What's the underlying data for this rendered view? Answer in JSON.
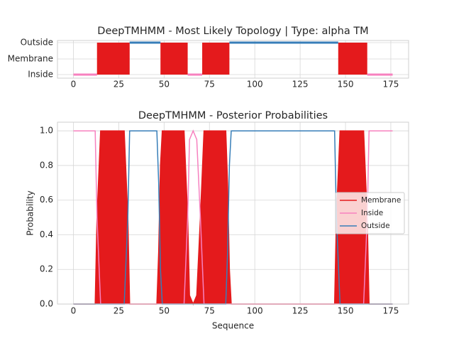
{
  "chart_data": [
    {
      "type": "topology",
      "title": "DeepTMHMM - Most Likely Topology | Type: alpha TM",
      "categories": [
        "Inside",
        "Membrane",
        "Outside"
      ],
      "segments": [
        {
          "state": "Inside",
          "start": 0,
          "end": 13
        },
        {
          "state": "Membrane",
          "start": 13,
          "end": 31
        },
        {
          "state": "Outside",
          "start": 31,
          "end": 48
        },
        {
          "state": "Membrane",
          "start": 48,
          "end": 63
        },
        {
          "state": "Inside",
          "start": 63,
          "end": 71
        },
        {
          "state": "Membrane",
          "start": 71,
          "end": 86
        },
        {
          "state": "Outside",
          "start": 86,
          "end": 146
        },
        {
          "state": "Membrane",
          "start": 146,
          "end": 162
        },
        {
          "state": "Inside",
          "start": 162,
          "end": 176
        }
      ],
      "colors": {
        "Inside": "#f781bf",
        "Membrane": "#e41a1c",
        "Outside": "#377eb8"
      },
      "xlim": [
        -8.8,
        184.8
      ],
      "xticks": [
        0,
        25,
        50,
        75,
        100,
        125,
        150,
        175
      ],
      "grid": true
    },
    {
      "type": "line",
      "title": "DeepTMHMM - Posterior Probabilities",
      "x_label": "Sequence",
      "y_label": "Probability",
      "x": [
        0,
        12,
        13,
        15,
        28,
        30,
        31,
        32,
        46,
        47,
        48,
        49,
        61,
        63,
        64,
        66,
        68,
        70,
        72,
        84,
        85,
        86,
        87,
        144,
        145,
        147,
        160,
        162,
        163,
        176
      ],
      "series": [
        {
          "name": "Membrane",
          "color": "#e41a1c",
          "fill": true,
          "values": [
            0,
            0,
            0.5,
            1,
            1,
            0.5,
            0,
            0,
            0,
            0.3,
            0.8,
            1,
            1,
            0.5,
            0.05,
            0,
            0.05,
            0.5,
            1,
            1,
            0.7,
            0.2,
            0,
            0,
            0.5,
            1,
            1,
            0.5,
            0,
            0
          ]
        },
        {
          "name": "Inside",
          "color": "#f781bf",
          "fill": false,
          "values": [
            1,
            1,
            0.5,
            0,
            0,
            0,
            0,
            0,
            0,
            0,
            0,
            0,
            0,
            0.5,
            0.95,
            1,
            0.95,
            0.5,
            0,
            0,
            0,
            0,
            0,
            0,
            0,
            0,
            0,
            0.5,
            1,
            1
          ]
        },
        {
          "name": "Outside",
          "color": "#377eb8",
          "fill": false,
          "values": [
            0,
            0,
            0,
            0,
            0,
            0.5,
            1,
            1,
            1,
            0.7,
            0.2,
            0,
            0,
            0,
            0,
            0,
            0,
            0,
            0,
            0,
            0.3,
            0.8,
            1,
            1,
            0.5,
            0,
            0,
            0,
            0,
            0
          ]
        }
      ],
      "xlim": [
        -8.8,
        184.8
      ],
      "ylim": [
        0,
        1.05
      ],
      "xticks": [
        0,
        25,
        50,
        75,
        100,
        125,
        150,
        175
      ],
      "yticks": [
        {
          "value": 0,
          "label": "0.0"
        },
        {
          "value": 0.2,
          "label": "0.2"
        },
        {
          "value": 0.4,
          "label": "0.4"
        },
        {
          "value": 0.6,
          "label": "0.6"
        },
        {
          "value": 0.8,
          "label": "0.8"
        },
        {
          "value": 1,
          "label": "1.0"
        }
      ],
      "grid": true,
      "legend": "center right"
    }
  ]
}
